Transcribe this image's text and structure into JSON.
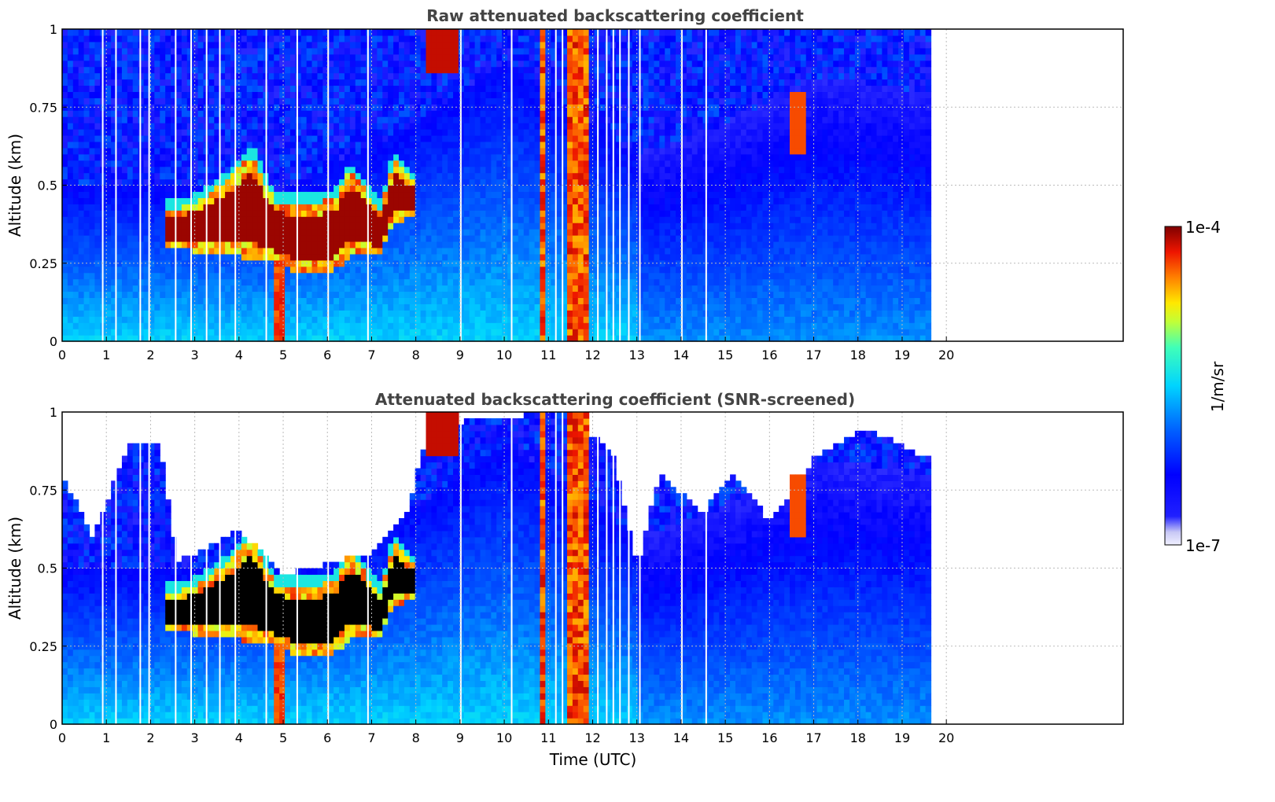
{
  "figure": {
    "panels": [
      {
        "title": "Raw attenuated backscattering coefficient",
        "ylabel": "Altitude (km)",
        "xlabel": ""
      },
      {
        "title": "Attenuated backscattering coefficient (SNR-screened)",
        "ylabel": "Altitude (km)",
        "xlabel": "Time (UTC)"
      }
    ],
    "colorbar": {
      "label": "1/m/sr",
      "max_label": "1e-4",
      "min_label": "1e-7"
    }
  },
  "chart_data": [
    {
      "type": "heatmap",
      "title": "Raw attenuated backscattering coefficient",
      "xlabel": "",
      "ylabel": "Altitude (km)",
      "xlim": [
        0,
        24
      ],
      "ylim": [
        0,
        1
      ],
      "x_ticks": [
        0,
        1,
        2,
        3,
        4,
        5,
        6,
        7,
        8,
        9,
        10,
        11,
        12,
        13,
        14,
        15,
        16,
        17,
        18,
        19,
        20
      ],
      "x_tick_labels": [
        "0",
        "1",
        "2",
        "3",
        "4",
        "5",
        "6",
        "7",
        "8",
        "9",
        "10",
        "11",
        "12",
        "13",
        "14",
        "15",
        "16",
        "17",
        "18",
        "19",
        "20"
      ],
      "y_ticks": [
        0,
        0.25,
        0.5,
        0.75,
        1
      ],
      "y_tick_labels": [
        "0",
        "0.25",
        "0.5",
        "0.75",
        "1"
      ],
      "grid": true,
      "data_end_time": 19.65,
      "colormap": "jet",
      "color_scale": "log",
      "clim": [
        1e-07,
        0.0001
      ],
      "features": {
        "aerosol_layer_top_km": 0.5,
        "cloud_layer": {
          "time": [
            2.3,
            8.0
          ],
          "base_km_approx": [
            0.3,
            0.3,
            0.28,
            0.35,
            0.42
          ],
          "top_km_approx": [
            0.4,
            0.5,
            0.6,
            0.45,
            0.55
          ]
        },
        "rain_columns_time": [
          4.9,
          10.85,
          11.6
        ],
        "noisy_above_km": 0.55
      }
    },
    {
      "type": "heatmap",
      "title": "Attenuated backscattering coefficient (SNR-screened)",
      "xlabel": "Time (UTC)",
      "ylabel": "Altitude (km)",
      "xlim": [
        0,
        24
      ],
      "ylim": [
        0,
        1
      ],
      "x_ticks": [
        0,
        1,
        2,
        3,
        4,
        5,
        6,
        7,
        8,
        9,
        10,
        11,
        12,
        13,
        14,
        15,
        16,
        17,
        18,
        19,
        20
      ],
      "x_tick_labels": [
        "0",
        "1",
        "2",
        "3",
        "4",
        "5",
        "6",
        "7",
        "8",
        "9",
        "10",
        "11",
        "12",
        "13",
        "14",
        "15",
        "16",
        "17",
        "18",
        "19",
        "20"
      ],
      "y_ticks": [
        0,
        0.25,
        0.5,
        0.75,
        1
      ],
      "y_tick_labels": [
        "0",
        "0.25",
        "0.5",
        "0.75",
        "1"
      ],
      "grid": true,
      "data_end_time": 19.65,
      "colormap": "jet",
      "color_scale": "log",
      "clim": [
        1e-07,
        0.0001
      ],
      "features": {
        "screened_region": "low-SNR pixels removed (white)",
        "saturated_color": "#000000"
      }
    }
  ]
}
